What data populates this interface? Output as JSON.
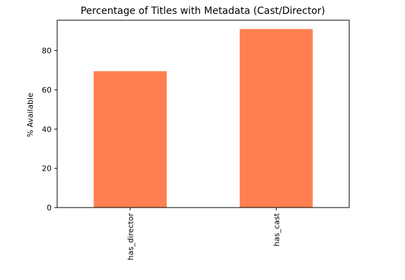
{
  "chart_data": {
    "type": "bar",
    "title": "Percentage of Titles with Metadata (Cast/Director)",
    "xlabel": "",
    "ylabel": "% Available",
    "categories": [
      "has_director",
      "has_cast"
    ],
    "values": [
      69.5,
      91.0
    ],
    "ylim": [
      0,
      95.5
    ],
    "yticks": [
      0,
      20,
      40,
      60,
      80
    ],
    "ytick_labels": [
      "0",
      "20",
      "40",
      "60",
      "80"
    ],
    "bar_color": "#ff7f50",
    "grid": false,
    "legend": "none"
  }
}
